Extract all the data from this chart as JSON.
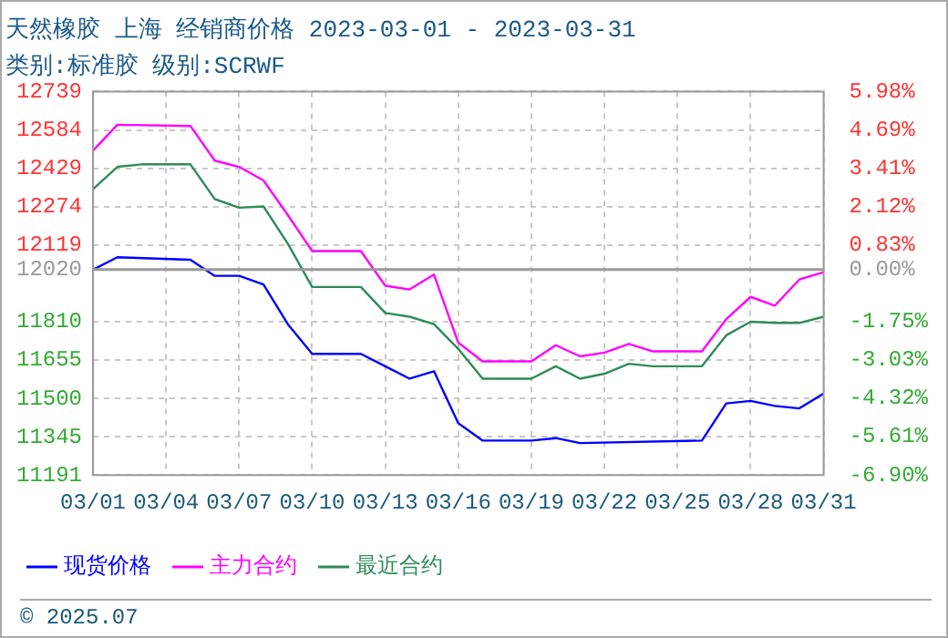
{
  "chart_data": {
    "type": "line",
    "title": "天然橡胶 上海 经销商价格 2023-03-01 - 2023-03-31",
    "subtitle": "类别:标准胶 级别:SCRWF",
    "annotations": [
      "© 2025.07"
    ],
    "series": [
      {
        "name": "现货价格",
        "color": "#0000ff",
        "x": [
          "2023-03-01",
          "2023-03-02",
          "2023-03-05",
          "2023-03-06",
          "2023-03-07",
          "2023-03-08",
          "2023-03-09",
          "2023-03-10",
          "2023-03-12",
          "2023-03-13",
          "2023-03-14",
          "2023-03-15",
          "2023-03-16",
          "2023-03-17",
          "2023-03-19",
          "2023-03-20",
          "2023-03-21",
          "2023-03-26",
          "2023-03-27",
          "2023-03-28",
          "2023-03-29",
          "2023-03-30",
          "2023-03-31"
        ],
        "values": [
          12020,
          12070,
          12060,
          11995,
          11995,
          11960,
          11800,
          11680,
          11680,
          11630,
          11580,
          11610,
          11400,
          11330,
          11330,
          11340,
          11320,
          11330,
          11480,
          11490,
          11470,
          11460,
          11520
        ]
      },
      {
        "name": "主力合约",
        "color": "#ff00ff",
        "x": [
          "2023-03-01",
          "2023-03-02",
          "2023-03-05",
          "2023-03-06",
          "2023-03-07",
          "2023-03-08",
          "2023-03-09",
          "2023-03-10",
          "2023-03-12",
          "2023-03-13",
          "2023-03-14",
          "2023-03-15",
          "2023-03-16",
          "2023-03-17",
          "2023-03-19",
          "2023-03-20",
          "2023-03-21",
          "2023-03-22",
          "2023-03-23",
          "2023-03-24",
          "2023-03-26",
          "2023-03-27",
          "2023-03-28",
          "2023-03-29",
          "2023-03-30",
          "2023-03-31"
        ],
        "values": [
          12500,
          12605,
          12600,
          12460,
          12435,
          12380,
          12240,
          12095,
          12095,
          11955,
          11940,
          12000,
          11725,
          11650,
          11650,
          11715,
          11670,
          11685,
          11720,
          11690,
          11690,
          11820,
          11910,
          11875,
          11980,
          12010
        ]
      },
      {
        "name": "最近合约",
        "color": "#2e8b57",
        "x": [
          "2023-03-01",
          "2023-03-02",
          "2023-03-03",
          "2023-03-05",
          "2023-03-06",
          "2023-03-07",
          "2023-03-08",
          "2023-03-09",
          "2023-03-10",
          "2023-03-12",
          "2023-03-13",
          "2023-03-14",
          "2023-03-15",
          "2023-03-16",
          "2023-03-17",
          "2023-03-19",
          "2023-03-20",
          "2023-03-21",
          "2023-03-22",
          "2023-03-23",
          "2023-03-24",
          "2023-03-26",
          "2023-03-27",
          "2023-03-28",
          "2023-03-29",
          "2023-03-30",
          "2023-03-31"
        ],
        "values": [
          12345,
          12435,
          12445,
          12445,
          12305,
          12270,
          12275,
          12125,
          11950,
          11950,
          11845,
          11830,
          11800,
          11700,
          11580,
          11580,
          11630,
          11580,
          11600,
          11640,
          11630,
          11630,
          11755,
          11810,
          11805,
          11805,
          11830
        ]
      }
    ],
    "xlim": [
      "2023-03-01",
      "2023-03-31"
    ],
    "xticks": [
      {
        "value": "2023-03-01",
        "label": "03/01"
      },
      {
        "value": "2023-03-04",
        "label": "03/04"
      },
      {
        "value": "2023-03-07",
        "label": "03/07"
      },
      {
        "value": "2023-03-10",
        "label": "03/10"
      },
      {
        "value": "2023-03-13",
        "label": "03/13"
      },
      {
        "value": "2023-03-16",
        "label": "03/16"
      },
      {
        "value": "2023-03-19",
        "label": "03/19"
      },
      {
        "value": "2023-03-22",
        "label": "03/22"
      },
      {
        "value": "2023-03-25",
        "label": "03/25"
      },
      {
        "value": "2023-03-28",
        "label": "03/28"
      },
      {
        "value": "2023-03-31",
        "label": "03/31"
      }
    ],
    "ylim": [
      11191,
      12739
    ],
    "yticks": [
      11191,
      11345,
      11500,
      11655,
      11810,
      12020,
      12119,
      12274,
      12429,
      12584,
      12739
    ],
    "y2lim": [
      -6.9,
      5.98
    ],
    "y2ticks": [
      {
        "value": -6.9,
        "label": "-6.90%"
      },
      {
        "value": -5.61,
        "label": "-5.61%"
      },
      {
        "value": -4.32,
        "label": "-4.32%"
      },
      {
        "value": -3.03,
        "label": "-3.03%"
      },
      {
        "value": -1.75,
        "label": "-1.75%"
      },
      {
        "value": 0,
        "label": "0.00%"
      },
      {
        "value": 0.83,
        "label": "0.83%"
      },
      {
        "value": 2.12,
        "label": "2.12%"
      },
      {
        "value": 3.41,
        "label": "3.41%"
      },
      {
        "value": 4.69,
        "label": "4.69%"
      },
      {
        "value": 5.98,
        "label": "5.98%"
      }
    ],
    "ref_lines": [
      {
        "axis": "y",
        "value": 12020,
        "color": "#999999"
      }
    ],
    "grid": true,
    "legend": "bottom",
    "marker": "none",
    "line_style": "solid"
  }
}
